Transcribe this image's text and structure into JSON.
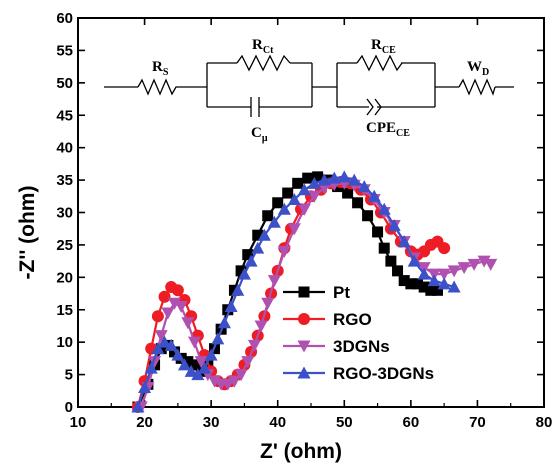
{
  "chart_data": {
    "type": "scatter",
    "xlabel": "Z' (ohm)",
    "ylabel": "-Z'' (ohm)",
    "xlim": [
      10,
      80
    ],
    "ylim": [
      0,
      60
    ],
    "x_ticks": [
      10,
      20,
      30,
      40,
      50,
      60,
      70,
      80
    ],
    "y_ticks": [
      0,
      5,
      10,
      15,
      20,
      25,
      30,
      35,
      40,
      45,
      50,
      55,
      60
    ],
    "grid": false,
    "legend_position": "bottom-center",
    "series": [
      {
        "name": "Pt",
        "color": "#000000",
        "marker": "square",
        "x": [
          19.0,
          20.5,
          21.5,
          22.5,
          23.5,
          24.5,
          25.5,
          26.5,
          27.5,
          28.5,
          29.5,
          30.5,
          31.5,
          32.5,
          33.5,
          34.5,
          35.5,
          37.0,
          38.5,
          40.0,
          41.5,
          43.0,
          44.5,
          46.0,
          47.5,
          49.0,
          50.5,
          52.0,
          53.5,
          55.0,
          56.0,
          57.0,
          58.0,
          59.0,
          60.0,
          61.0,
          62.0,
          63.0,
          64.0
        ],
        "y": [
          0.0,
          3.5,
          6.5,
          9.0,
          9.5,
          8.5,
          7.5,
          7.0,
          6.5,
          5.5,
          6.5,
          9.0,
          12.0,
          15.0,
          18.0,
          21.0,
          23.5,
          26.5,
          29.5,
          31.5,
          33.0,
          34.5,
          35.3,
          35.5,
          35.0,
          34.0,
          33.0,
          31.5,
          29.5,
          27.0,
          24.5,
          22.5,
          21.0,
          19.5,
          19.0,
          19.0,
          18.5,
          18.0,
          18.0
        ]
      },
      {
        "name": "RGO",
        "color": "#ee1c24",
        "marker": "circle",
        "x": [
          19.0,
          20.0,
          21.0,
          22.0,
          23.0,
          24.0,
          25.0,
          26.0,
          27.0,
          28.0,
          29.0,
          30.0,
          31.0,
          32.0,
          33.0,
          34.0,
          35.0,
          36.0,
          37.0,
          38.0,
          39.0,
          40.0,
          41.0,
          42.0,
          43.5,
          45.0,
          46.5,
          48.0,
          49.5,
          51.0,
          52.5,
          54.0,
          55.5,
          57.0,
          58.5,
          60.0,
          61.0,
          62.0,
          63.0,
          64.0,
          65.0
        ],
        "y": [
          0.0,
          4.0,
          9.0,
          14.0,
          17.0,
          18.5,
          18.0,
          16.5,
          14.0,
          11.0,
          8.0,
          5.5,
          4.0,
          3.5,
          4.0,
          5.0,
          6.5,
          8.5,
          11.0,
          14.0,
          17.5,
          21.0,
          24.5,
          27.5,
          30.5,
          32.5,
          33.5,
          34.5,
          34.7,
          34.5,
          33.5,
          32.0,
          30.0,
          27.5,
          25.5,
          24.0,
          23.5,
          24.0,
          25.0,
          25.5,
          24.5
        ]
      },
      {
        "name": "3DGNs",
        "color": "#b050b0",
        "marker": "triangle-down",
        "x": [
          19.5,
          20.5,
          21.5,
          22.5,
          23.5,
          24.5,
          25.5,
          26.5,
          27.5,
          28.5,
          29.5,
          30.5,
          31.5,
          32.5,
          33.5,
          34.5,
          35.5,
          36.5,
          37.5,
          38.5,
          39.5,
          41.0,
          42.5,
          44.0,
          45.5,
          47.0,
          48.5,
          50.0,
          51.5,
          53.0,
          54.5,
          56.0,
          57.5,
          59.0,
          60.5,
          62.0,
          63.5,
          65.0,
          66.5,
          68.0,
          69.5,
          71.0,
          72.0
        ],
        "y": [
          0.0,
          3.0,
          7.0,
          11.0,
          14.5,
          16.0,
          15.5,
          13.0,
          10.0,
          7.0,
          5.0,
          4.0,
          3.5,
          3.5,
          4.0,
          5.0,
          7.0,
          9.5,
          12.5,
          16.0,
          19.5,
          24.0,
          27.5,
          30.5,
          32.5,
          33.8,
          34.3,
          34.5,
          34.2,
          33.5,
          32.0,
          30.0,
          28.0,
          25.5,
          23.0,
          21.5,
          20.5,
          20.5,
          21.0,
          21.5,
          22.0,
          22.5,
          22.0
        ]
      },
      {
        "name": "RGO-3DGNs",
        "color": "#3c50c8",
        "marker": "triangle-up",
        "x": [
          19.0,
          20.0,
          21.0,
          22.0,
          23.0,
          24.0,
          25.0,
          26.0,
          27.0,
          28.0,
          29.0,
          30.0,
          31.0,
          32.0,
          33.0,
          34.0,
          35.0,
          36.0,
          37.0,
          38.0,
          39.5,
          41.0,
          42.5,
          44.0,
          45.5,
          47.0,
          48.5,
          50.0,
          51.5,
          53.0,
          54.5,
          56.0,
          57.5,
          59.0,
          60.5,
          62.0,
          63.5,
          65.0,
          66.5
        ],
        "y": [
          0.0,
          3.0,
          6.0,
          9.0,
          10.0,
          9.5,
          8.0,
          6.5,
          5.5,
          5.0,
          6.0,
          8.0,
          10.5,
          13.0,
          15.5,
          18.0,
          20.5,
          22.5,
          24.5,
          26.5,
          28.5,
          30.5,
          32.0,
          33.5,
          34.5,
          35.0,
          35.3,
          35.5,
          35.0,
          34.0,
          32.5,
          30.5,
          28.0,
          25.5,
          22.5,
          20.5,
          19.5,
          19.0,
          18.5
        ]
      }
    ],
    "inset_circuit": {
      "labels": [
        {
          "main": "R",
          "sub": "S"
        },
        {
          "main": "R",
          "sub": "Ct"
        },
        {
          "main": "C",
          "sub": "μ"
        },
        {
          "main": "R",
          "sub": "CE"
        },
        {
          "main": "CPE",
          "sub": "CE"
        },
        {
          "main": "W",
          "sub": "D"
        }
      ]
    }
  }
}
